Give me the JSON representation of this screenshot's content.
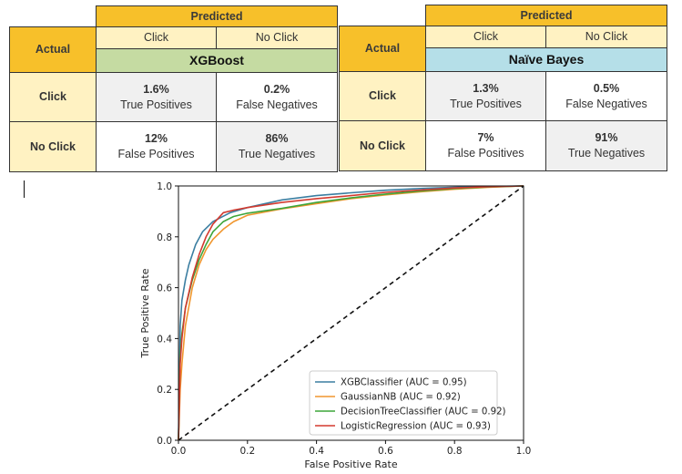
{
  "confusion_matrices": [
    {
      "predicted_label": "Predicted",
      "actual_label": "Actual",
      "col_click": "Click",
      "col_noclick": "No Click",
      "model": "XGBoost",
      "model_color": "#c5dba2",
      "rows": [
        {
          "label": "Click",
          "cells": [
            {
              "pct": "1.6%",
              "label": "True Positives"
            },
            {
              "pct": "0.2%",
              "label": "False Negatives"
            }
          ]
        },
        {
          "label": "No Click",
          "cells": [
            {
              "pct": "12%",
              "label": "False Positives"
            },
            {
              "pct": "86%",
              "label": "True Negatives"
            }
          ]
        }
      ]
    },
    {
      "predicted_label": "Predicted",
      "actual_label": "Actual",
      "col_click": "Click",
      "col_noclick": "No Click",
      "model": "Naïve Bayes",
      "model_color": "#b5dfe8",
      "rows": [
        {
          "label": "Click",
          "cells": [
            {
              "pct": "1.3%",
              "label": "True Positives"
            },
            {
              "pct": "0.5%",
              "label": "False Negatives"
            }
          ]
        },
        {
          "label": "No Click",
          "cells": [
            {
              "pct": "7%",
              "label": "False Positives"
            },
            {
              "pct": "91%",
              "label": "True Negatives"
            }
          ]
        }
      ]
    }
  ],
  "chart_data": {
    "type": "line",
    "title": "",
    "xlabel": "False Positive Rate",
    "ylabel": "True Positive Rate",
    "xlim": [
      0,
      1
    ],
    "ylim": [
      0,
      1
    ],
    "xticks": [
      "0.0",
      "0.2",
      "0.4",
      "0.6",
      "0.8",
      "1.0"
    ],
    "yticks": [
      "0.0",
      "0.2",
      "0.4",
      "0.6",
      "0.8",
      "1.0"
    ],
    "grid": false,
    "legend_position": "lower-right",
    "series": [
      {
        "name": "XGBClassifier (AUC = 0.95)",
        "color": "#3b7ea1",
        "x": [
          0,
          0.005,
          0.01,
          0.02,
          0.03,
          0.05,
          0.07,
          0.1,
          0.15,
          0.2,
          0.3,
          0.4,
          0.5,
          0.6,
          0.7,
          0.8,
          0.9,
          1.0
        ],
        "y": [
          0,
          0.45,
          0.55,
          0.63,
          0.69,
          0.77,
          0.82,
          0.86,
          0.895,
          0.915,
          0.945,
          0.962,
          0.973,
          0.983,
          0.99,
          0.995,
          0.998,
          1.0
        ]
      },
      {
        "name": "GaussianNB (AUC = 0.92)",
        "color": "#f0962e",
        "x": [
          0,
          0.005,
          0.01,
          0.02,
          0.04,
          0.06,
          0.08,
          0.1,
          0.13,
          0.16,
          0.2,
          0.3,
          0.4,
          0.5,
          0.6,
          0.7,
          0.8,
          0.9,
          1.0
        ],
        "y": [
          0,
          0.2,
          0.3,
          0.45,
          0.6,
          0.69,
          0.75,
          0.79,
          0.83,
          0.86,
          0.885,
          0.91,
          0.93,
          0.95,
          0.965,
          0.977,
          0.987,
          0.995,
          1.0
        ]
      },
      {
        "name": "DecisionTreeClassifier (AUC = 0.92)",
        "color": "#3da53a",
        "x": [
          0,
          0.005,
          0.01,
          0.02,
          0.04,
          0.06,
          0.08,
          0.1,
          0.13,
          0.16,
          0.2,
          0.3,
          0.4,
          0.5,
          0.6,
          0.7,
          0.8,
          0.9,
          1.0
        ],
        "y": [
          0,
          0.33,
          0.42,
          0.52,
          0.63,
          0.71,
          0.77,
          0.82,
          0.86,
          0.88,
          0.893,
          0.912,
          0.935,
          0.953,
          0.968,
          0.98,
          0.99,
          0.996,
          1.0
        ]
      },
      {
        "name": "LogisticRegression (AUC = 0.93)",
        "color": "#d33a2f",
        "x": [
          0,
          0.005,
          0.01,
          0.02,
          0.04,
          0.06,
          0.08,
          0.1,
          0.13,
          0.16,
          0.2,
          0.3,
          0.4,
          0.5,
          0.6,
          0.7,
          0.8,
          0.9,
          1.0
        ],
        "y": [
          0,
          0.3,
          0.4,
          0.52,
          0.64,
          0.73,
          0.8,
          0.85,
          0.895,
          0.905,
          0.915,
          0.935,
          0.95,
          0.962,
          0.975,
          0.984,
          0.992,
          0.997,
          1.0
        ]
      }
    ],
    "reference_line": {
      "style": "dashed",
      "color": "#111111",
      "x": [
        0,
        1
      ],
      "y": [
        0,
        1
      ]
    }
  }
}
